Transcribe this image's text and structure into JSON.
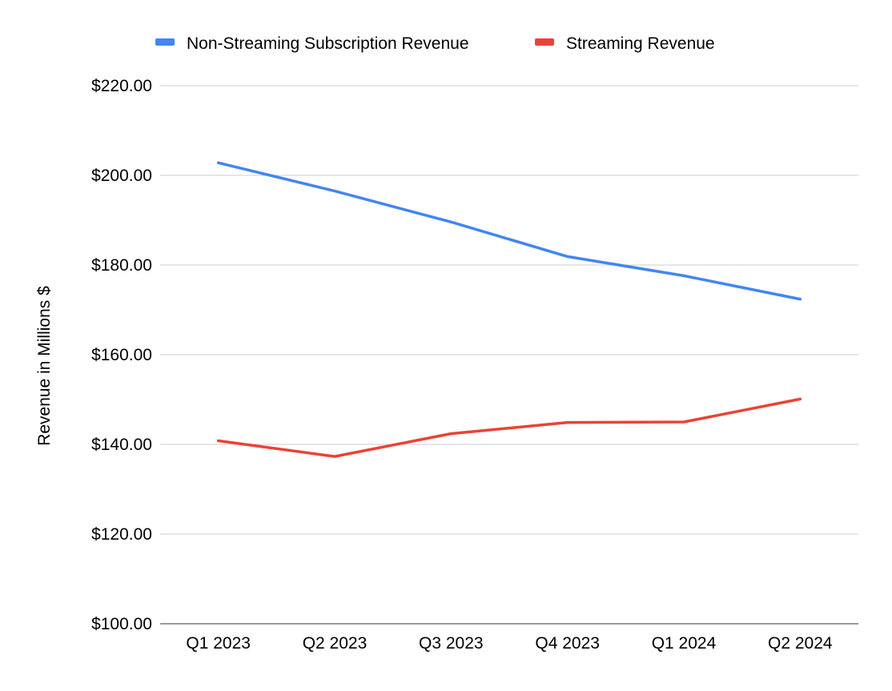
{
  "chart_data": {
    "type": "line",
    "title": "",
    "xlabel": "",
    "ylabel": "Revenue in Millions $",
    "ylim": [
      100,
      220
    ],
    "y_ticks": [
      {
        "value": 100,
        "label": "$100.00"
      },
      {
        "value": 120,
        "label": "$120.00"
      },
      {
        "value": 140,
        "label": "$140.00"
      },
      {
        "value": 160,
        "label": "$160.00"
      },
      {
        "value": 180,
        "label": "$180.00"
      },
      {
        "value": 200,
        "label": "$200.00"
      },
      {
        "value": 220,
        "label": "$220.00"
      }
    ],
    "categories": [
      "Q1 2023",
      "Q2 2023",
      "Q3 2023",
      "Q4 2023",
      "Q1 2024",
      "Q2 2024"
    ],
    "series": [
      {
        "name": "Non-Streaming Subscription Revenue",
        "color": "#4285f4",
        "values": [
          202.8,
          196.5,
          189.6,
          181.9,
          177.6,
          172.4
        ]
      },
      {
        "name": "Streaming Revenue",
        "color": "#ea4335",
        "values": [
          140.8,
          137.3,
          142.4,
          144.9,
          145.0,
          150.1
        ]
      }
    ],
    "grid": true,
    "gridline_color": "#cccccc",
    "legend_position": "top"
  }
}
